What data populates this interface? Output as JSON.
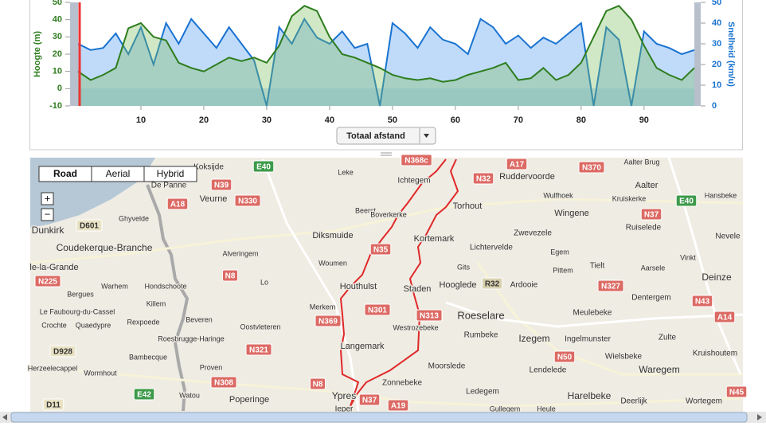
{
  "chart_data": {
    "type": "line",
    "ylabel": "Hoogte (m)",
    "y2label": "Snelheid (km/u)",
    "x": [
      0,
      2,
      4,
      6,
      8,
      10,
      12,
      14,
      16,
      18,
      20,
      22,
      24,
      26,
      28,
      30,
      32,
      34,
      36,
      38,
      40,
      42,
      44,
      46,
      48,
      50,
      52,
      54,
      56,
      58,
      60,
      62,
      64,
      66,
      68,
      70,
      72,
      74,
      76,
      78,
      80,
      82,
      84,
      86,
      88,
      90,
      92,
      94,
      96,
      98
    ],
    "xlim": [
      0,
      98
    ],
    "xticks": [
      10,
      20,
      30,
      40,
      50,
      60,
      70,
      80,
      90
    ],
    "ylim": [
      -10,
      50
    ],
    "yticks": [
      -10,
      0,
      10,
      20,
      30,
      40,
      50
    ],
    "y2lim": [
      0,
      50
    ],
    "y2ticks": [
      0,
      10,
      20,
      30,
      40,
      50
    ],
    "series": [
      {
        "color": "#2e7d1e",
        "values": [
          10,
          5,
          8,
          12,
          35,
          38,
          30,
          28,
          15,
          12,
          10,
          14,
          18,
          16,
          18,
          15,
          25,
          42,
          48,
          45,
          30,
          20,
          18,
          15,
          12,
          8,
          6,
          5,
          6,
          4,
          5,
          8,
          10,
          12,
          15,
          5,
          6,
          12,
          5,
          8,
          15,
          30,
          45,
          48,
          40,
          25,
          12,
          8,
          5,
          12
        ]
      },
      {
        "color": "#1a73d0",
        "axis": "y2",
        "values": [
          30,
          27,
          28,
          35,
          25,
          38,
          20,
          40,
          30,
          42,
          35,
          28,
          38,
          30,
          22,
          0,
          38,
          30,
          42,
          33,
          30,
          36,
          28,
          30,
          0,
          40,
          35,
          28,
          38,
          32,
          30,
          25,
          42,
          38,
          30,
          34,
          28,
          33,
          30,
          35,
          40,
          0,
          38,
          32,
          0,
          36,
          30,
          28,
          25,
          27
        ]
      }
    ]
  },
  "controls": {
    "xaxis_select": "Totaal afstand",
    "map_types": [
      "Road",
      "Aerial",
      "Hybrid"
    ],
    "zoom_in": "+",
    "zoom_out": "−"
  },
  "map": {
    "places": [
      "Koksijde",
      "De Panne",
      "Veurne",
      "Leke",
      "Ichtegem",
      "Ruddervoorde",
      "Aalter Brug",
      "Aalter",
      "Hansbeke",
      "Wulfhoek",
      "Kruiskerke",
      "Wingene",
      "Torhout",
      "Beerst",
      "Boverkerke",
      "Ghyvelde",
      "Dunkirk",
      "Diksmuide",
      "Kortemark",
      "Zwevezele",
      "Ruiselede",
      "Nevele",
      "Coudekerque-Branche",
      "Alveringem",
      "Lichtervelde",
      "Egem",
      "Woumen",
      "Gits",
      "Pittem",
      "Tielt",
      "Aarsele",
      "Vinkt",
      "le-la-Grande",
      "Lo",
      "Deinze",
      "Warhem",
      "Hondschoote",
      "Houthulst",
      "Staden",
      "Hooglede",
      "Ardooie",
      "Dentergem",
      "Bergues",
      "Killem",
      "Merkem",
      "Roeselare",
      "Meulebeke",
      "Le Faubourg-du-Cassel",
      "Beveren",
      "Rexpoede",
      "Crochte",
      "Quaedypre",
      "Oostvleteren",
      "Westrozebeke",
      "Rumbeke",
      "Izegem",
      "Ingelmunster",
      "Zulte",
      "Roesbrugge-Haringe",
      "Bambecque",
      "Langemark",
      "Wielsbeke",
      "Kruishoutem",
      "Moorslede",
      "Lendelede",
      "Waregem",
      "Herzeelecappel",
      "Wormhout",
      "Proven",
      "Zonnebeke",
      "Ledegem",
      "Harelbeke",
      "Deerlijk",
      "Watou",
      "Poperinge",
      "Ypres",
      "Ieper",
      "Wortegem",
      "Gullegem",
      "Heule"
    ],
    "roads": [
      "E40",
      "N39",
      "N330",
      "N368c",
      "N32",
      "A17",
      "N370",
      "E40",
      "A18",
      "D601",
      "N37",
      "N35",
      "N8",
      "R32",
      "N327",
      "N225",
      "N301",
      "N313",
      "N43",
      "A14",
      "N369",
      "D928",
      "N321",
      "N50",
      "N308",
      "N8",
      "E42",
      "N37",
      "A19",
      "D11",
      "N45"
    ]
  }
}
